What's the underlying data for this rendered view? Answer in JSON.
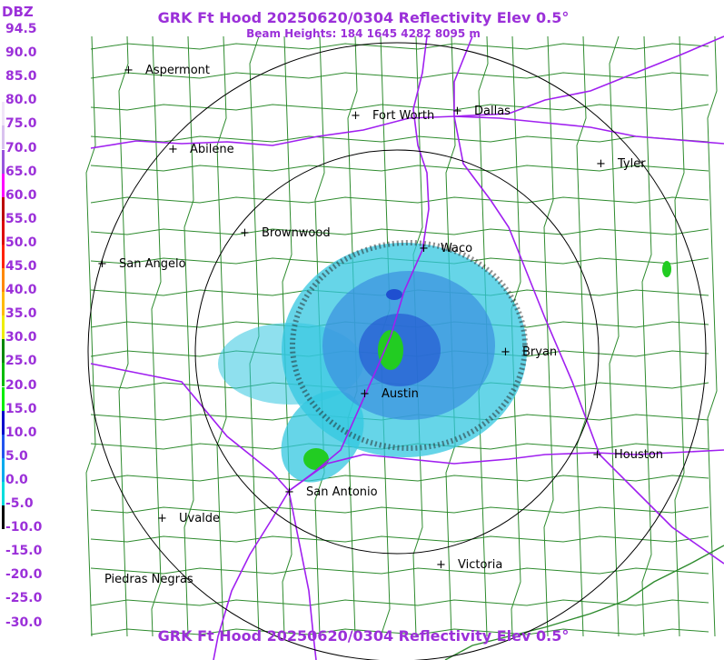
{
  "header": {
    "title": "GRK Ft Hood 20250620/0304 Reflectivity Elev 0.5°",
    "subtitle": "Beam Heights: 184 1645 4282 8095 m",
    "footer_title": "GRK Ft Hood 20250620/0304 Reflectivity Elev 0.5°"
  },
  "legend": {
    "unit": "DBZ",
    "levels": [
      {
        "label": "94.5",
        "color": "#ffffff"
      },
      {
        "label": "90.0",
        "color": "#ffffff"
      },
      {
        "label": "85.0",
        "color": "#ffffff"
      },
      {
        "label": "80.0",
        "color": "#f0e6f7"
      },
      {
        "label": "75.0",
        "color": "#d9c2ef"
      },
      {
        "label": "70.0",
        "color": "#9955dd"
      },
      {
        "label": "65.0",
        "color": "#ff00ff"
      },
      {
        "label": "60.0",
        "color": "#bb0000"
      },
      {
        "label": "55.0",
        "color": "#dd0000"
      },
      {
        "label": "50.0",
        "color": "#ff2200"
      },
      {
        "label": "45.0",
        "color": "#ff8800"
      },
      {
        "label": "40.0",
        "color": "#ffbb00"
      },
      {
        "label": "35.0",
        "color": "#eeee00"
      },
      {
        "label": "30.0",
        "color": "#008800"
      },
      {
        "label": "25.0",
        "color": "#00bb00"
      },
      {
        "label": "20.0",
        "color": "#00ee00"
      },
      {
        "label": "15.0",
        "color": "#0000cc"
      },
      {
        "label": "10.0",
        "color": "#2255ee"
      },
      {
        "label": "5.0",
        "color": "#00aaee"
      },
      {
        "label": "0.0",
        "color": "#00dddd"
      },
      {
        "label": "-5.0",
        "color": "#000000"
      },
      {
        "label": "-10.0",
        "color": "#ffffff"
      },
      {
        "label": "-15.0",
        "color": "#ffffff"
      },
      {
        "label": "-20.0",
        "color": "#ffffff"
      },
      {
        "label": "-25.0",
        "color": "#ffffff"
      },
      {
        "label": "-30.0",
        "color": "#ffffff"
      }
    ]
  },
  "map": {
    "colors": {
      "county_lines": "#2e8b2e",
      "state_lines": "#a020f0",
      "range_rings": "#000000",
      "echo_light": "#33c7e0",
      "echo_medium": "#3a8fe0",
      "echo_heavy": "#1f4fd0",
      "echo_green": "#22cc22"
    },
    "cities": [
      {
        "name": "Aspermont",
        "mark": "+"
      },
      {
        "name": "Fort Worth",
        "mark": "+"
      },
      {
        "name": "Dallas",
        "mark": "+"
      },
      {
        "name": "Abilene",
        "mark": "+"
      },
      {
        "name": "Tyler",
        "mark": "+"
      },
      {
        "name": "Brownwood",
        "mark": "+"
      },
      {
        "name": "Waco",
        "mark": "+"
      },
      {
        "name": "San Angelo",
        "mark": "+"
      },
      {
        "name": "Bryan",
        "mark": "+"
      },
      {
        "name": "Austin",
        "mark": "+"
      },
      {
        "name": "Houston",
        "mark": "+"
      },
      {
        "name": "San Antonio",
        "mark": "+"
      },
      {
        "name": "Uvalde",
        "mark": "+"
      },
      {
        "name": "Victoria",
        "mark": "+"
      },
      {
        "name": "Piedras Negras",
        "mark": ""
      }
    ]
  }
}
